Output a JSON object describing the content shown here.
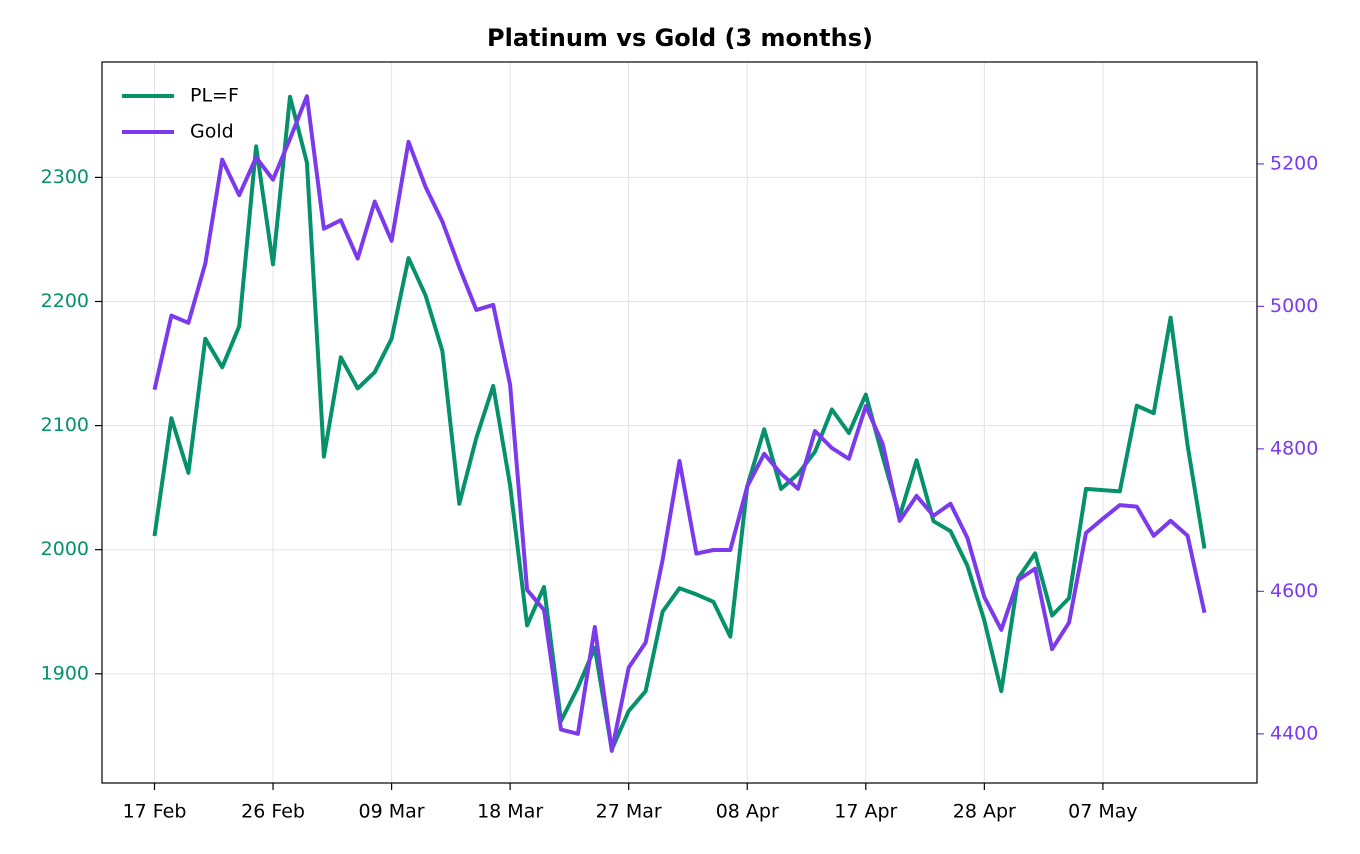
{
  "chart_data": {
    "type": "line",
    "title": "Platinum vs Gold (3 months)",
    "categories": [
      "17 Feb",
      null,
      null,
      null,
      null,
      null,
      null,
      "26 Feb",
      null,
      null,
      null,
      null,
      null,
      null,
      "09 Mar",
      null,
      null,
      null,
      null,
      null,
      null,
      "18 Mar",
      null,
      null,
      null,
      null,
      null,
      null,
      "27 Mar",
      null,
      null,
      null,
      null,
      null,
      null,
      "08 Apr",
      null,
      null,
      null,
      null,
      null,
      null,
      "17 Apr",
      null,
      null,
      null,
      null,
      null,
      null,
      "28 Apr",
      null,
      null,
      null,
      null,
      null,
      null,
      "07 May",
      null,
      null,
      null,
      null,
      null,
      null
    ],
    "series": [
      {
        "name": "PL=F",
        "color": "#05916a",
        "values": [
          2011,
          2106,
          2062,
          2170,
          2147,
          2180,
          2325,
          2230,
          2365,
          2312,
          2075,
          2155,
          2130,
          2143,
          2170,
          2235,
          2205,
          2160,
          2037,
          2090,
          2132,
          2052,
          1939,
          1970,
          1862,
          1889,
          1921,
          1839,
          1870,
          1886,
          1950,
          1969,
          1964,
          1958,
          1930,
          2051,
          2097,
          2049,
          2061,
          2079,
          2113,
          2094,
          2125,
          2075,
          2027,
          2072,
          2023,
          2015,
          1987,
          1943,
          1886,
          1977,
          1997,
          1947,
          1961,
          2049,
          2048,
          2047,
          2116,
          2110,
          2187,
          2084,
          2001
        ]
      },
      {
        "name": "Gold",
        "color": "#7c3aed",
        "axis": "y2",
        "values": [
          4883,
          4987,
          4977,
          5060,
          5206,
          5156,
          5209,
          5178,
          5235,
          5295,
          5109,
          5121,
          5067,
          5147,
          5092,
          5231,
          5168,
          5119,
          5055,
          4995,
          5002,
          4890,
          4602,
          4574,
          4406,
          4400,
          4550,
          4376,
          4493,
          4528,
          4644,
          4783,
          4653,
          4658,
          4658,
          4747,
          4793,
          4765,
          4744,
          4825,
          4801,
          4786,
          4860,
          4807,
          4699,
          4734,
          4706,
          4723,
          4675,
          4592,
          4546,
          4616,
          4632,
          4519,
          4556,
          4682,
          4702,
          4721,
          4719,
          4678,
          4699,
          4678,
          4570
        ]
      }
    ],
    "ylim": [
      1812,
      2393
    ],
    "yticks": [
      1900,
      2000,
      2100,
      2200,
      2300
    ],
    "y2lim": [
      4331,
      5343
    ],
    "y2ticks": [
      4400,
      4600,
      4800,
      5000,
      5200
    ],
    "grid": true,
    "legend": "upper left"
  }
}
